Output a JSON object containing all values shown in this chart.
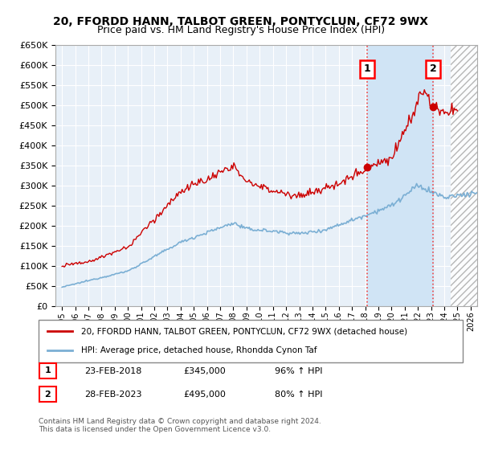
{
  "title": "20, FFORDD HANN, TALBOT GREEN, PONTYCLUN, CF72 9WX",
  "subtitle": "Price paid vs. HM Land Registry's House Price Index (HPI)",
  "ylim": [
    0,
    650000
  ],
  "yticks": [
    0,
    50000,
    100000,
    150000,
    200000,
    250000,
    300000,
    350000,
    400000,
    450000,
    500000,
    550000,
    600000,
    650000
  ],
  "xlim_start": 1994.5,
  "xlim_end": 2026.5,
  "xticks": [
    1995,
    1996,
    1997,
    1998,
    1999,
    2000,
    2001,
    2002,
    2003,
    2004,
    2005,
    2006,
    2007,
    2008,
    2009,
    2010,
    2011,
    2012,
    2013,
    2014,
    2015,
    2016,
    2017,
    2018,
    2019,
    2020,
    2021,
    2022,
    2023,
    2024,
    2025,
    2026
  ],
  "hpi_color": "#7bafd4",
  "price_color": "#cc0000",
  "bg_color": "#e8f0f8",
  "highlight_color": "#d0e4f5",
  "hatch_color": "#d8d8d8",
  "sale1_x": 2018.15,
  "sale1_y": 345000,
  "sale2_x": 2023.15,
  "sale2_y": 495000,
  "legend_price_label": "20, FFORDD HANN, TALBOT GREEN, PONTYCLUN, CF72 9WX (detached house)",
  "legend_hpi_label": "HPI: Average price, detached house, Rhondda Cynon Taf",
  "annotation1_label": "1",
  "annotation1_date": "23-FEB-2018",
  "annotation1_price": "£345,000",
  "annotation1_hpi": "96% ↑ HPI",
  "annotation2_label": "2",
  "annotation2_date": "28-FEB-2023",
  "annotation2_price": "£495,000",
  "annotation2_hpi": "80% ↑ HPI",
  "footer": "Contains HM Land Registry data © Crown copyright and database right 2024.\nThis data is licensed under the Open Government Licence v3.0."
}
